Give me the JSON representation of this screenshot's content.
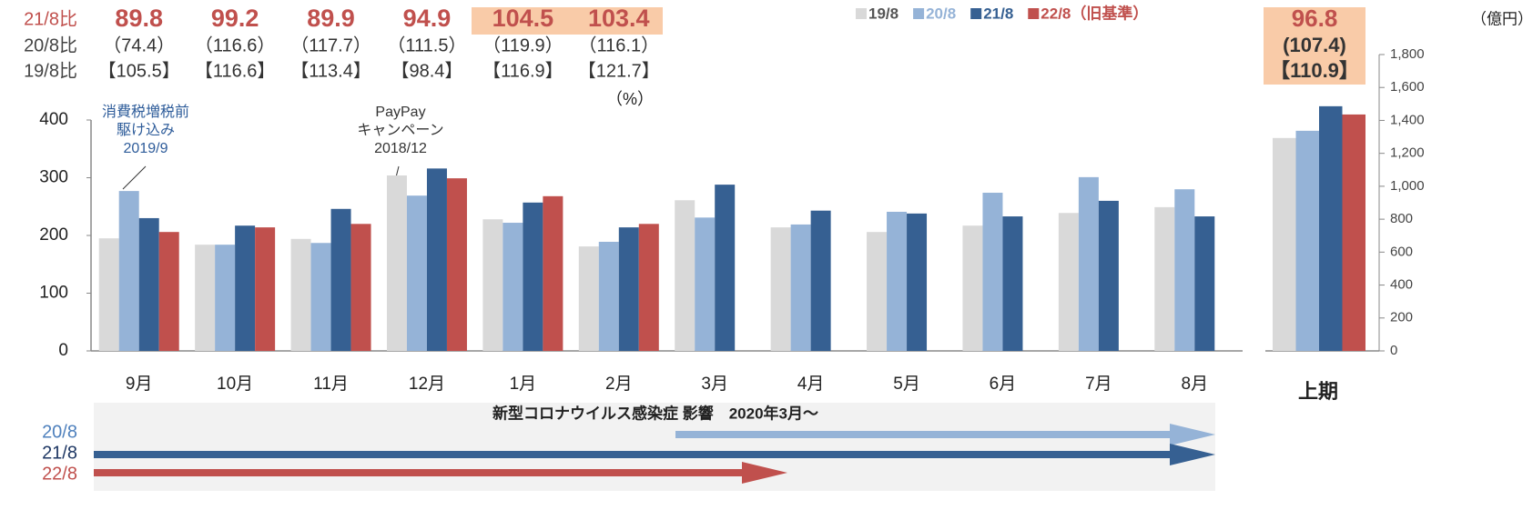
{
  "chart_data": [
    {
      "type": "bar",
      "categories": [
        "9月",
        "10月",
        "11月",
        "12月",
        "1月",
        "2月",
        "3月",
        "4月",
        "5月",
        "6月",
        "7月",
        "8月"
      ],
      "series": [
        {
          "name": "19/8",
          "color": "#d9d9d9",
          "values": [
            195,
            184,
            194,
            304,
            228,
            181,
            261,
            214,
            206,
            217,
            239,
            249
          ]
        },
        {
          "name": "20/8",
          "color": "#95b3d7",
          "values": [
            277,
            184,
            187,
            269,
            222,
            189,
            231,
            219,
            241,
            274,
            301,
            280
          ]
        },
        {
          "name": "21/8",
          "color": "#366092",
          "values": [
            230,
            217,
            246,
            316,
            257,
            214,
            288,
            243,
            238,
            233,
            260,
            233
          ]
        },
        {
          "name": "22/8（旧基準）",
          "color": "#c0504d",
          "values": [
            206,
            214,
            220,
            299,
            268,
            220,
            null,
            null,
            null,
            null,
            null,
            null
          ]
        }
      ],
      "ylim": [
        0,
        400
      ],
      "yticks": [
        0,
        100,
        200,
        300,
        400
      ],
      "grid": false,
      "legend": "top",
      "annotations": [
        {
          "lines": [
            "消費税増税前",
            "駆け込み",
            "2019/9"
          ]
        },
        {
          "lines": [
            "PayPay",
            "キャンペーン",
            "2018/12"
          ]
        }
      ],
      "unit_note": "（%）"
    },
    {
      "type": "bar",
      "xlabel": "上期",
      "categories": [
        null
      ],
      "series": [
        {
          "color": "#d9d9d9",
          "values": [
            1293
          ]
        },
        {
          "color": "#95b3d7",
          "values": [
            1337
          ]
        },
        {
          "color": "#366092",
          "values": [
            1486
          ]
        },
        {
          "color": "#c0504d",
          "values": [
            1436
          ]
        }
      ],
      "y2lim": [
        0,
        1800
      ],
      "y2ticks": [
        0,
        200,
        400,
        600,
        800,
        {
          "value": 1000,
          "label": "1,000"
        },
        {
          "value": 1200,
          "label": "1,200"
        },
        {
          "value": 1400,
          "label": "1,400"
        },
        {
          "value": 1600,
          "label": "1,600"
        },
        {
          "value": 1800,
          "label": "1,800"
        }
      ],
      "y2label": "（億円）"
    }
  ],
  "ratio_table": {
    "rows": [
      {
        "label": "21/8比",
        "values": [
          "89.8",
          "99.2",
          "89.9",
          "94.9",
          "104.5",
          "103.4"
        ],
        "total": "96.8"
      },
      {
        "label": "20/8比",
        "values": [
          "（74.4）",
          "（116.6）",
          "（117.7）",
          "（111.5）",
          "（119.9）",
          "（116.1）"
        ],
        "total": "(107.4)"
      },
      {
        "label": "19/8比",
        "values": [
          "【105.5】",
          "【116.6】",
          "【113.4】",
          "【98.4】",
          "【116.9】",
          "【121.7】"
        ],
        "total": "【110.9】"
      }
    ]
  },
  "timeline": {
    "title": "新型コロナウイルス感染症 影響　2020年3月～",
    "labels": [
      "20/8",
      "21/8",
      "22/8"
    ]
  }
}
